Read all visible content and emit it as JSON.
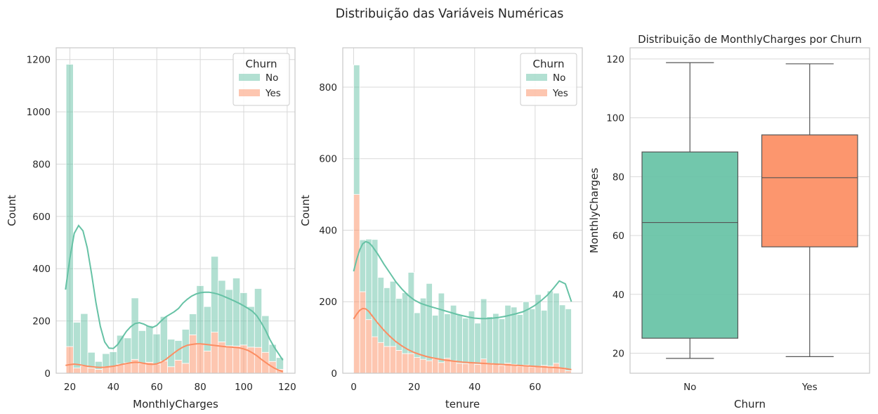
{
  "suptitle": "Distribuição das Variáveis Numéricas",
  "colors": {
    "no": "#66c2a5",
    "yes": "#fc8d62",
    "grid": "#d9d9d9",
    "spine": "#c8c8c8",
    "box_line": "#555555"
  },
  "chart_data": [
    {
      "type": "bar",
      "subtype": "stacked-histogram-with-kde",
      "title": "",
      "xlabel": "MonthlyCharges",
      "ylabel": "Count",
      "xlim": [
        13.7,
        123.6
      ],
      "ylim": [
        0,
        1245
      ],
      "xticks": [
        20,
        40,
        60,
        80,
        100,
        120
      ],
      "yticks": [
        0,
        200,
        400,
        600,
        800,
        1000,
        1200
      ],
      "grid": true,
      "legend": {
        "title": "Churn",
        "position": "top-right",
        "entries": [
          "No",
          "Yes"
        ]
      },
      "bin_start": 18.25,
      "bin_width": 3.335,
      "series": [
        {
          "name": "No",
          "values": [
            1080,
            175,
            200,
            60,
            30,
            50,
            55,
            110,
            95,
            235,
            125,
            140,
            115,
            170,
            105,
            75,
            130,
            80,
            225,
            170,
            290,
            235,
            215,
            260,
            200,
            155,
            225,
            140,
            65,
            45
          ]
        },
        {
          "name": "Yes",
          "values": [
            102,
            20,
            28,
            20,
            15,
            25,
            27,
            35,
            40,
            53,
            38,
            42,
            35,
            47,
            25,
            50,
            38,
            147,
            110,
            85,
            157,
            120,
            105,
            104,
            108,
            100,
            99,
            80,
            45,
            15
          ]
        }
      ],
      "kde": [
        {
          "name": "No",
          "x": [
            18,
            20,
            22,
            24,
            26,
            28,
            30,
            32,
            34,
            36,
            38,
            40,
            42,
            44,
            46,
            48,
            50,
            52,
            54,
            56,
            58,
            60,
            62,
            64,
            66,
            68,
            70,
            72,
            74,
            76,
            78,
            80,
            82,
            84,
            86,
            88,
            90,
            92,
            94,
            96,
            98,
            100,
            102,
            104,
            106,
            108,
            110,
            112,
            114,
            116,
            118
          ],
          "y": [
            320,
            440,
            535,
            565,
            545,
            480,
            380,
            270,
            180,
            120,
            96,
            95,
            110,
            135,
            160,
            178,
            190,
            193,
            188,
            180,
            175,
            183,
            200,
            215,
            225,
            235,
            248,
            268,
            283,
            295,
            303,
            308,
            310,
            310,
            307,
            303,
            297,
            290,
            283,
            275,
            267,
            258,
            248,
            237,
            220,
            195,
            165,
            130,
            100,
            75,
            50
          ]
        },
        {
          "name": "Yes",
          "x": [
            18,
            20,
            22,
            24,
            26,
            28,
            30,
            32,
            34,
            36,
            38,
            40,
            42,
            44,
            46,
            48,
            50,
            52,
            54,
            56,
            58,
            60,
            62,
            64,
            66,
            68,
            70,
            72,
            74,
            76,
            78,
            80,
            82,
            84,
            86,
            88,
            90,
            92,
            94,
            96,
            98,
            100,
            102,
            104,
            106,
            108,
            110,
            112,
            114,
            116,
            118
          ],
          "y": [
            30,
            33,
            35,
            33,
            30,
            27,
            25,
            23,
            22,
            23,
            25,
            27,
            30,
            34,
            37,
            40,
            42,
            41,
            38,
            35,
            34,
            36,
            42,
            52,
            65,
            78,
            90,
            100,
            107,
            110,
            112,
            112,
            111,
            109,
            107,
            105,
            103,
            101,
            100,
            99,
            97,
            93,
            87,
            78,
            67,
            54,
            42,
            30,
            20,
            12,
            6
          ]
        }
      ]
    },
    {
      "type": "bar",
      "subtype": "stacked-histogram-with-kde",
      "title": "",
      "xlabel": "tenure",
      "ylabel": "Count",
      "xlim": [
        -3.6,
        75.6
      ],
      "ylim": [
        0,
        910
      ],
      "xticks": [
        0,
        20,
        40,
        60
      ],
      "yticks": [
        0,
        200,
        400,
        600,
        800
      ],
      "grid": true,
      "legend": {
        "title": "Churn",
        "position": "top-right",
        "entries": [
          "No",
          "Yes"
        ]
      },
      "bin_start": 0,
      "bin_width": 2.0,
      "series": [
        {
          "name": "No",
          "values": [
            362,
            145,
            225,
            272,
            182,
            164,
            182,
            145,
            170,
            227,
            125,
            171,
            216,
            122,
            194,
            124,
            155,
            135,
            127,
            144,
            115,
            168,
            130,
            142,
            130,
            162,
            160,
            144,
            177,
            162,
            200,
            154,
            210,
            196,
            176,
            173
          ]
        },
        {
          "name": "Yes",
          "values": [
            500,
            228,
            150,
            102,
            86,
            75,
            75,
            64,
            55,
            55,
            44,
            39,
            35,
            40,
            30,
            42,
            35,
            28,
            27,
            30,
            25,
            40,
            28,
            25,
            22,
            28,
            25,
            20,
            23,
            18,
            20,
            22,
            20,
            28,
            15,
            7
          ]
        }
      ],
      "kde": [
        {
          "name": "No",
          "x": [
            0,
            1,
            2,
            3,
            4,
            5,
            6,
            8,
            10,
            12,
            14,
            16,
            18,
            20,
            22,
            24,
            26,
            28,
            30,
            32,
            34,
            36,
            38,
            40,
            42,
            44,
            46,
            48,
            50,
            52,
            54,
            56,
            58,
            60,
            62,
            64,
            66,
            68,
            70,
            72
          ],
          "y": [
            285,
            318,
            345,
            362,
            368,
            365,
            357,
            333,
            305,
            280,
            255,
            235,
            218,
            205,
            196,
            190,
            185,
            180,
            175,
            170,
            165,
            161,
            157,
            154,
            153,
            153,
            154,
            156,
            159,
            163,
            167,
            172,
            180,
            190,
            203,
            218,
            237,
            258,
            250,
            200
          ]
        },
        {
          "name": "Yes",
          "x": [
            0,
            1,
            2,
            3,
            4,
            5,
            6,
            8,
            10,
            12,
            14,
            16,
            18,
            20,
            22,
            24,
            26,
            28,
            30,
            32,
            34,
            36,
            38,
            40,
            42,
            44,
            46,
            48,
            50,
            52,
            54,
            56,
            58,
            60,
            62,
            64,
            66,
            68,
            70,
            72
          ],
          "y": [
            152,
            165,
            176,
            181,
            180,
            173,
            162,
            140,
            120,
            103,
            88,
            76,
            66,
            58,
            52,
            47,
            43,
            40,
            37,
            35,
            33,
            31,
            30,
            29,
            28,
            27,
            26,
            25,
            24,
            23,
            22,
            21,
            20,
            19,
            18,
            17,
            16,
            15,
            13,
            10
          ]
        }
      ]
    },
    {
      "type": "box",
      "title": "Distribuição de MonthlyCharges por Churn",
      "xlabel": "Churn",
      "ylabel": "MonthlyCharges",
      "categories": [
        "No",
        "Yes"
      ],
      "ylim": [
        13.2,
        123.8
      ],
      "yticks": [
        20,
        40,
        60,
        80,
        100,
        120
      ],
      "grid": true,
      "boxes": [
        {
          "name": "No",
          "min": 18.25,
          "q1": 25.1,
          "median": 64.43,
          "q3": 88.4,
          "max": 118.75
        },
        {
          "name": "Yes",
          "min": 18.85,
          "q1": 56.15,
          "median": 79.65,
          "q3": 94.2,
          "max": 118.35
        }
      ]
    }
  ]
}
